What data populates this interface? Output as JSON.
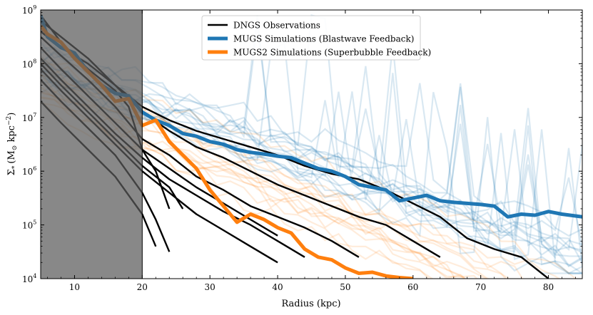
{
  "chart_data": {
    "type": "line",
    "title": "",
    "xlabel": "Radius (kpc)",
    "ylabel_main": "Σ",
    "ylabel_sub": "*",
    "ylabel_units": "(M",
    "ylabel_sun": "⊙",
    "ylabel_kpc": " kpc",
    "ylabel_exp": "−2",
    "ylabel_close": ")",
    "xlim": [
      5,
      85
    ],
    "ylim_log10": [
      4,
      9
    ],
    "xticks": [
      10,
      20,
      30,
      40,
      50,
      60,
      70,
      80
    ],
    "xtick_labels": [
      "10",
      "20",
      "30",
      "40",
      "50",
      "60",
      "70",
      "80"
    ],
    "yticks_log10": [
      4,
      5,
      6,
      7,
      8,
      9
    ],
    "ytick_base": "10",
    "ytick_exps": [
      "4",
      "5",
      "6",
      "7",
      "8",
      "9"
    ],
    "shaded_region": {
      "x_min": 5,
      "x_max": 20
    },
    "legend": {
      "position": "top-center",
      "entries": [
        {
          "label": "DNGS Observations",
          "color": "#000000"
        },
        {
          "label": "MUGS Simulations (Blastwave Feedback)",
          "color": "#1f77b4"
        },
        {
          "label": "MUGS2 Simulations (Superbubble Feedback)",
          "color": "#ff7f0e"
        }
      ]
    },
    "series": [
      {
        "name": "MUGS Simulations (Blastwave Feedback)",
        "color": "#1f77b4",
        "x": [
          5,
          6,
          8,
          10,
          12,
          14,
          16,
          18,
          20,
          22,
          24,
          26,
          28,
          30,
          32,
          34,
          36,
          38,
          40,
          42,
          44,
          46,
          48,
          50,
          52,
          54,
          56,
          58,
          60,
          62,
          64,
          66,
          68,
          70,
          72,
          74,
          76,
          78,
          80,
          82,
          85
        ],
        "y_log10": [
          8.9,
          8.5,
          8.3,
          8.2,
          7.85,
          7.6,
          7.45,
          7.4,
          7.1,
          6.95,
          6.85,
          6.7,
          6.65,
          6.55,
          6.5,
          6.4,
          6.35,
          6.32,
          6.28,
          6.25,
          6.15,
          6.05,
          6.0,
          5.9,
          5.75,
          5.7,
          5.65,
          5.45,
          5.5,
          5.55,
          5.45,
          5.42,
          5.4,
          5.38,
          5.35,
          5.15,
          5.2,
          5.18,
          5.25,
          5.2,
          5.15
        ]
      },
      {
        "name": "MUGS2 Simulations (Superbubble Feedback)",
        "color": "#ff7f0e",
        "x": [
          5,
          6,
          8,
          10,
          12,
          14,
          16,
          18,
          20,
          22,
          24,
          26,
          28,
          30,
          32,
          34,
          36,
          38,
          40,
          42,
          44,
          46,
          48,
          50,
          52,
          54,
          56,
          58,
          60
        ],
        "y_log10": [
          8.7,
          8.55,
          8.4,
          8.1,
          7.85,
          7.6,
          7.3,
          7.35,
          6.85,
          6.95,
          6.55,
          6.3,
          6.05,
          5.65,
          5.35,
          5.05,
          5.2,
          5.1,
          4.95,
          4.85,
          4.55,
          4.4,
          4.35,
          4.2,
          4.1,
          4.12,
          4.05,
          4.02,
          4.0
        ]
      }
    ],
    "observations": {
      "name": "DNGS Observations",
      "color": "#000000",
      "profiles": [
        {
          "x": [
            5,
            8,
            12,
            16,
            20,
            24,
            28,
            32,
            36,
            40,
            44,
            48,
            52,
            56,
            60,
            64,
            68,
            72,
            76,
            80
          ],
          "y_log10": [
            8.6,
            8.3,
            8.0,
            7.6,
            7.2,
            6.95,
            6.75,
            6.6,
            6.45,
            6.3,
            6.1,
            5.95,
            5.85,
            5.65,
            5.4,
            5.15,
            4.75,
            4.55,
            4.4,
            4.0
          ]
        },
        {
          "x": [
            5,
            8,
            12,
            16,
            20,
            24,
            28,
            32,
            36,
            40,
            44,
            48,
            52,
            56,
            60,
            64
          ],
          "y_log10": [
            8.8,
            8.5,
            8.1,
            7.6,
            7.1,
            6.75,
            6.45,
            6.25,
            6.0,
            5.75,
            5.55,
            5.35,
            5.15,
            5.0,
            4.7,
            4.4
          ]
        },
        {
          "x": [
            5,
            8,
            12,
            16,
            20,
            24,
            28,
            32,
            36,
            40,
            44,
            48,
            52
          ],
          "y_log10": [
            8.5,
            8.15,
            7.7,
            7.2,
            6.6,
            6.3,
            5.9,
            5.65,
            5.35,
            5.15,
            4.95,
            4.7,
            4.4
          ]
        },
        {
          "x": [
            5,
            8,
            12,
            16,
            20,
            24,
            28,
            32,
            36,
            40
          ],
          "y_log10": [
            8.3,
            7.9,
            7.4,
            6.9,
            6.4,
            6.05,
            5.7,
            5.4,
            5.1,
            4.8
          ]
        },
        {
          "x": [
            5,
            8,
            12,
            16,
            20,
            24,
            28,
            32,
            36,
            40,
            44
          ],
          "y_log10": [
            8.1,
            7.7,
            7.2,
            6.7,
            6.25,
            5.85,
            5.55,
            5.25,
            5.0,
            4.7,
            4.4
          ]
        },
        {
          "x": [
            5,
            8,
            12,
            16,
            20,
            24,
            28,
            32,
            36,
            40
          ],
          "y_log10": [
            7.9,
            7.5,
            7.0,
            6.5,
            6.0,
            5.6,
            5.2,
            4.9,
            4.6,
            4.3
          ]
        },
        {
          "x": [
            5,
            8,
            12,
            16,
            20,
            24,
            26
          ],
          "y_log10": [
            8.0,
            7.6,
            7.1,
            6.6,
            6.1,
            5.7,
            5.3
          ]
        },
        {
          "x": [
            5,
            8,
            12,
            16,
            20,
            22,
            24
          ],
          "y_log10": [
            7.7,
            7.3,
            6.8,
            6.3,
            5.6,
            5.1,
            4.5
          ]
        },
        {
          "x": [
            5,
            8,
            12,
            16,
            20,
            22
          ],
          "y_log10": [
            7.3,
            6.9,
            6.4,
            5.9,
            5.2,
            4.6
          ]
        },
        {
          "x": [
            5,
            8,
            12,
            16,
            18,
            20,
            22,
            24
          ],
          "y_log10": [
            8.9,
            8.4,
            7.9,
            7.5,
            7.2,
            6.4,
            6.0,
            5.3
          ]
        }
      ]
    }
  }
}
